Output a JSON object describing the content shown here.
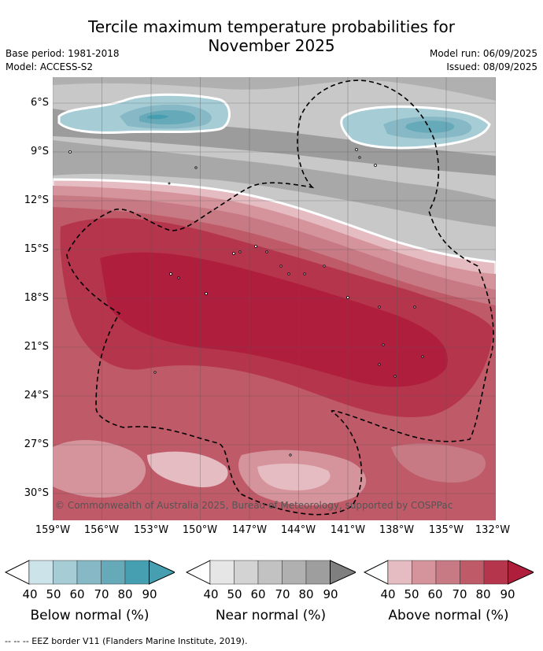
{
  "title_line1": "Tercile maximum temperature probabilities for",
  "title_line2": "November 2025",
  "meta": {
    "base_period": "Base period: 1981-2018",
    "model": "Model: ACCESS-S2",
    "model_run": "Model run: 06/09/2025",
    "issued": "Issued: 08/09/2025"
  },
  "map": {
    "lat_ticks": [
      "6°S",
      "9°S",
      "12°S",
      "15°S",
      "18°S",
      "21°S",
      "24°S",
      "27°S",
      "30°S"
    ],
    "lon_ticks": [
      "159°W",
      "156°W",
      "153°W",
      "150°W",
      "147°W",
      "144°W",
      "141°W",
      "138°W",
      "135°W",
      "132°W"
    ],
    "copyright": "© Commonwealth of Australia 2025, Bureau of Meteorology, supported by COSPPac"
  },
  "colorbars": [
    {
      "label": "Below normal (%)",
      "ticks": [
        "40",
        "50",
        "60",
        "70",
        "80",
        "90"
      ],
      "colors": [
        "#ffffff",
        "#cce3ea",
        "#a6cdd5",
        "#86b9c5",
        "#66a9b8",
        "#459fb0"
      ]
    },
    {
      "label": "Near normal (%)",
      "ticks": [
        "40",
        "50",
        "60",
        "70",
        "80",
        "90"
      ],
      "colors": [
        "#ffffff",
        "#e6e6e6",
        "#d3d3d3",
        "#c2c2c2",
        "#b0b0b0",
        "#9e9e9e",
        "#7f7f7f"
      ]
    },
    {
      "label": "Above normal (%)",
      "ticks": [
        "40",
        "50",
        "60",
        "70",
        "80",
        "90"
      ],
      "colors": [
        "#ffffff",
        "#e5bcc2",
        "#d5949c",
        "#c87a84",
        "#bf5a68",
        "#b5354d",
        "#b01e3e"
      ]
    }
  ],
  "footnote": "--  --  -- EEZ border V11 (Flanders Marine Institute, 2019)."
}
